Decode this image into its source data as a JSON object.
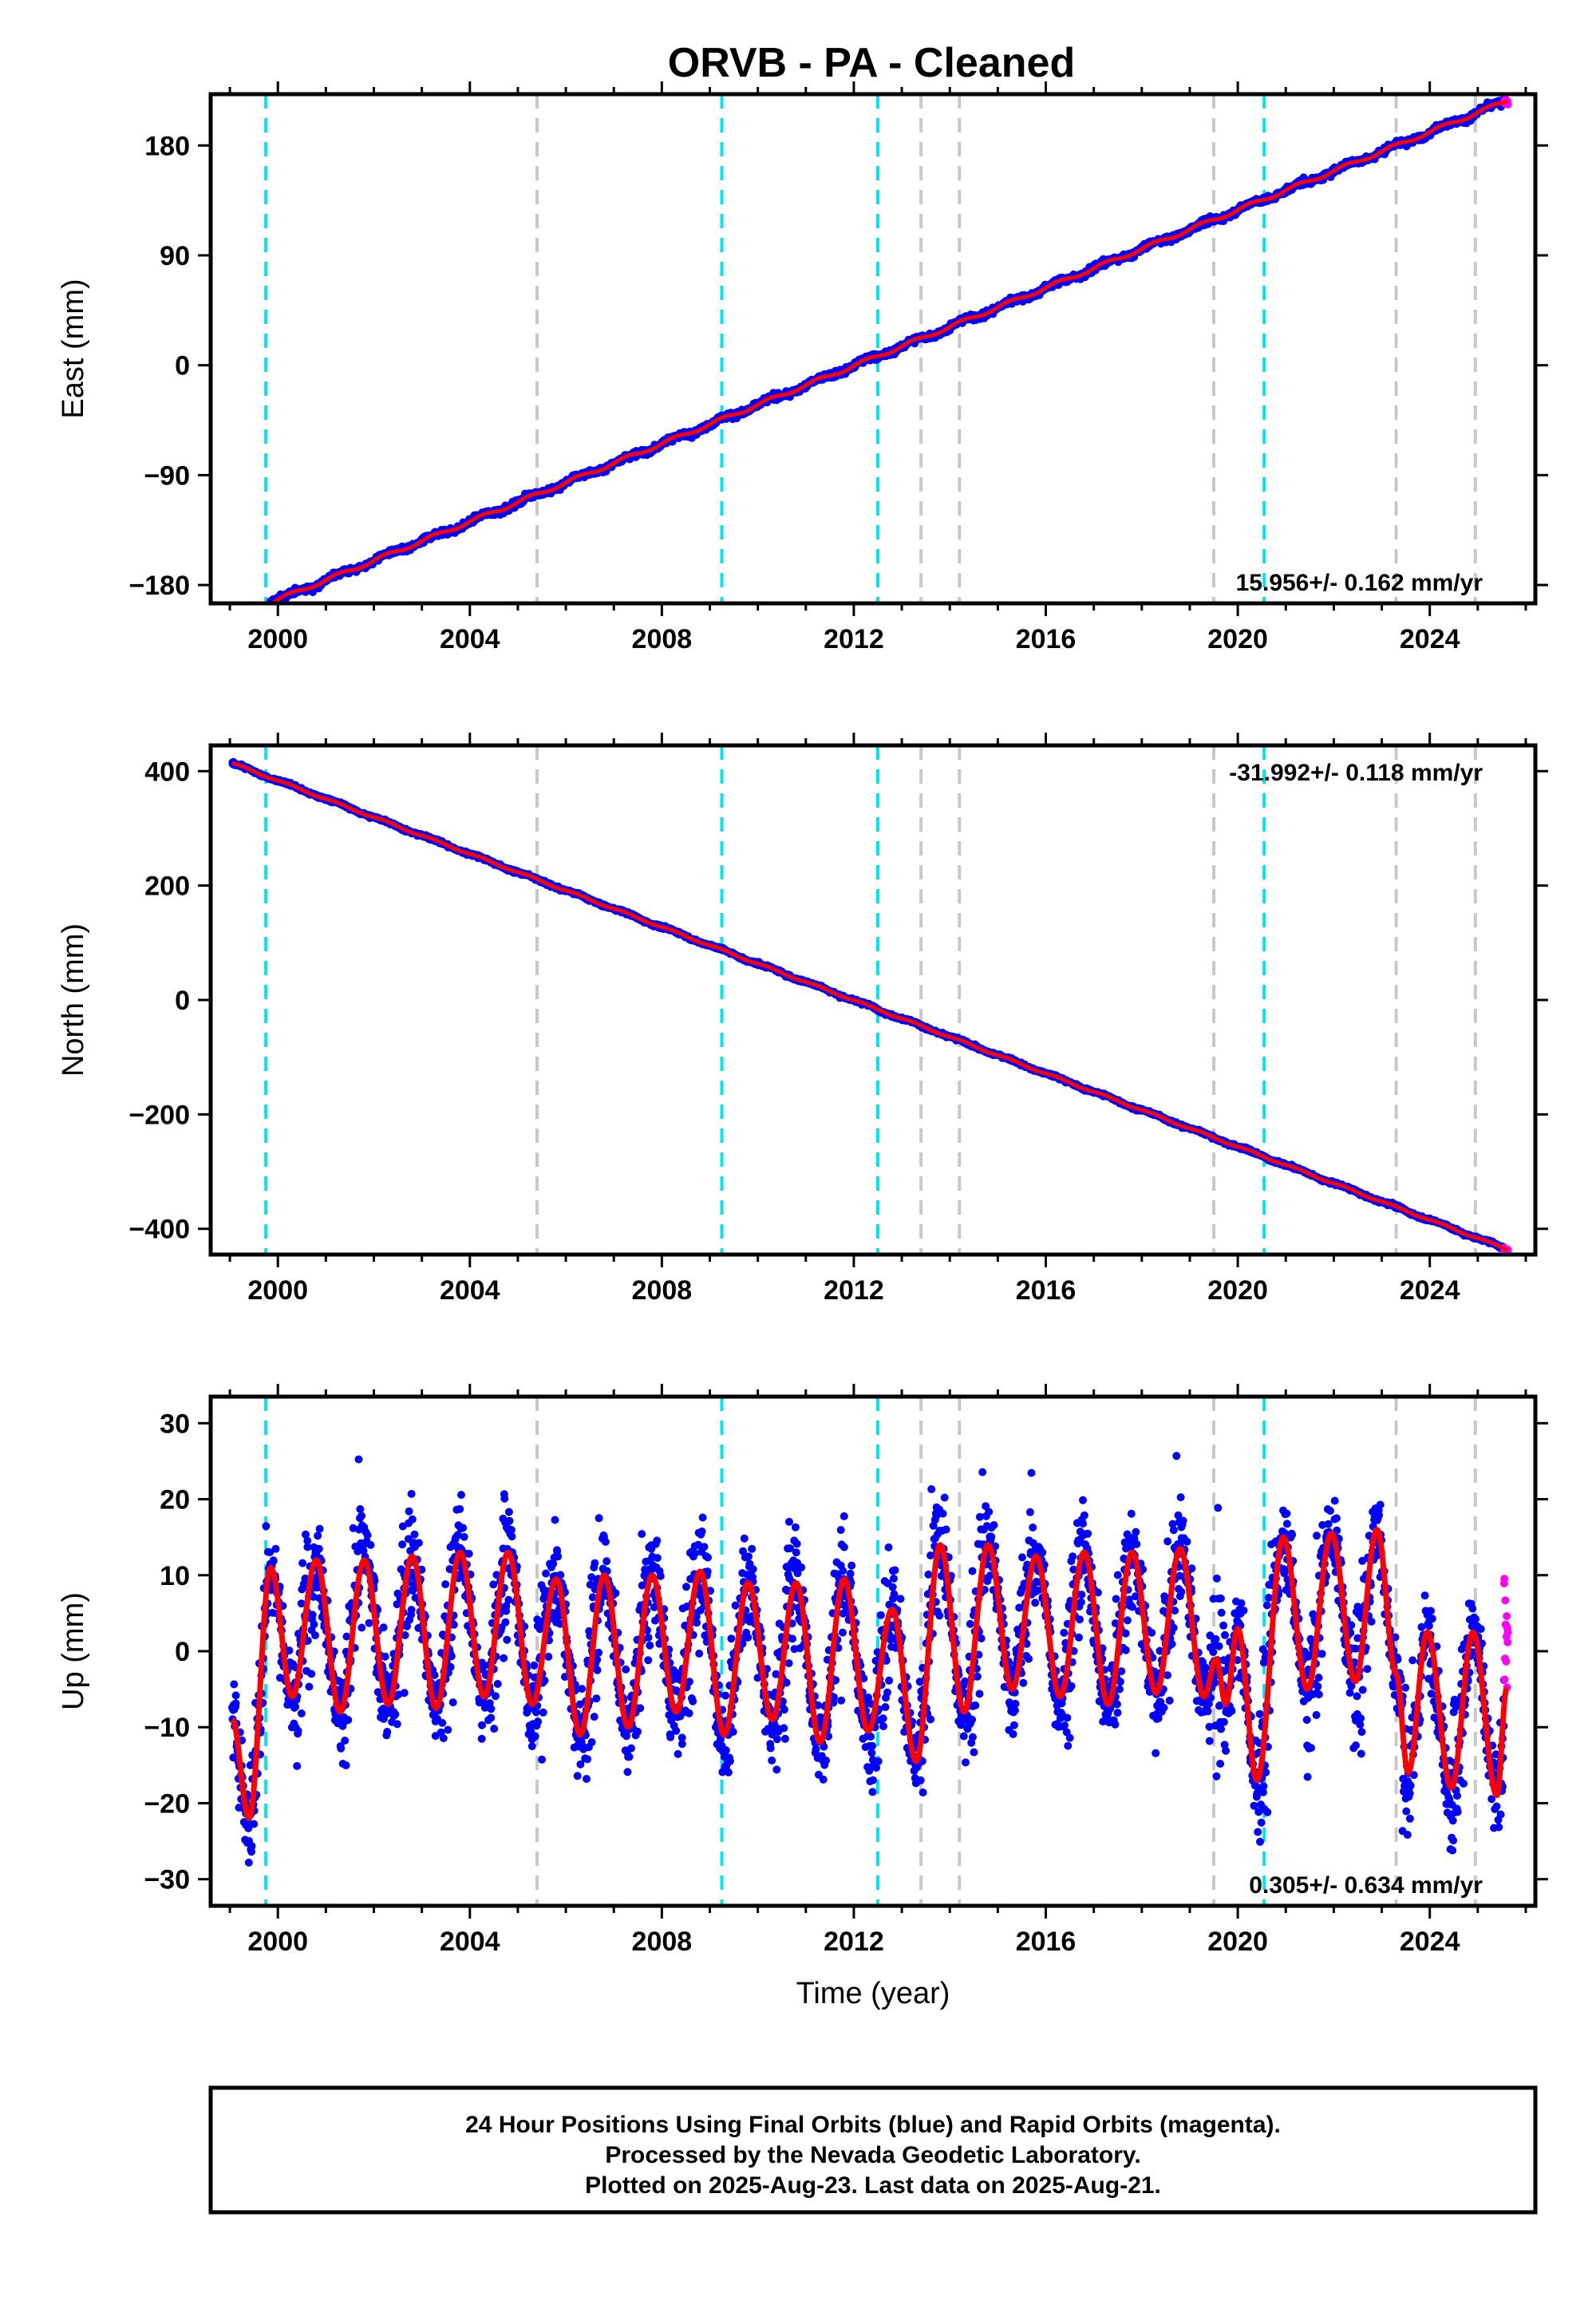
{
  "title": "ORVB  - PA - Cleaned",
  "footer": {
    "lines": [
      "24 Hour Positions Using Final Orbits (blue) and Rapid Orbits (magenta).",
      "Processed by the Nevada Geodetic Laboratory.",
      "Plotted on 2025-Aug-23. Last data on 2025-Aug-21."
    ]
  },
  "colors": {
    "final": "#0000ff",
    "rapid": "#ff00ff",
    "model": "#ff0000",
    "event_cyan": "#00e5ee",
    "event_gray": "#c8c8c8"
  },
  "chart_data": [
    {
      "type": "scatter",
      "component": "east",
      "ylabel": "East (mm)",
      "xlabel": "",
      "xlim": [
        1998.6,
        2026.2
      ],
      "ylim": [
        -195,
        222
      ],
      "yticks": [
        180,
        90,
        0,
        -90,
        -180
      ],
      "ytick_labels": [
        "180",
        "90",
        "0",
        "−90",
        "−180"
      ],
      "xticks": [
        2000,
        2004,
        2008,
        2012,
        2016,
        2020,
        2024
      ],
      "rate_label": "15.956+/- 0.162 mm/yr",
      "rate_position": "bottom-right",
      "model": {
        "t0": 2012.0,
        "offset": -0.5,
        "slope": 15.956,
        "annual_amp": 1.5
      },
      "data_span": [
        1999.05,
        2025.63
      ],
      "rapid_span": [
        2025.55,
        2025.63
      ]
    },
    {
      "type": "scatter",
      "component": "north",
      "ylabel": "North (mm)",
      "xlabel": "",
      "xlim": [
        1998.6,
        2026.2
      ],
      "ylim": [
        -445,
        445
      ],
      "yticks": [
        400,
        200,
        0,
        -200,
        -400
      ],
      "ytick_labels": [
        "400",
        "200",
        "0",
        "−200",
        "−400"
      ],
      "xticks": [
        2000,
        2004,
        2008,
        2012,
        2016,
        2020,
        2024
      ],
      "rate_label": "-31.992+/- 0.118 mm/yr",
      "rate_position": "top-right",
      "model": {
        "t0": 2012.0,
        "offset": -0.5,
        "slope": -31.992,
        "annual_amp": 1.5
      },
      "data_span": [
        1999.05,
        2025.63
      ],
      "rapid_span": [
        2025.55,
        2025.63
      ]
    },
    {
      "type": "scatter",
      "component": "up",
      "ylabel": "Up (mm)",
      "xlabel": "Time (year)",
      "xlim": [
        1998.6,
        2026.2
      ],
      "ylim": [
        -33.5,
        33.5
      ],
      "yticks": [
        30,
        20,
        10,
        0,
        -10,
        -20,
        -30
      ],
      "ytick_labels": [
        "30",
        "20",
        "10",
        "0",
        "−10",
        "−20",
        "−30"
      ],
      "xticks": [
        2000,
        2004,
        2008,
        2012,
        2016,
        2020,
        2024
      ],
      "rate_label": "0.305+/- 0.634 mm/yr",
      "rate_position": "bottom-right",
      "seasonal_model": [
        {
          "t": 1999.05,
          "v": -9
        },
        {
          "t": 1999.4,
          "v": -22
        },
        {
          "t": 1999.85,
          "v": 11
        },
        {
          "t": 2000.3,
          "v": -6
        },
        {
          "t": 2000.8,
          "v": 12
        },
        {
          "t": 2001.3,
          "v": -8
        },
        {
          "t": 2001.8,
          "v": 12
        },
        {
          "t": 2002.3,
          "v": -7
        },
        {
          "t": 2002.8,
          "v": 12.5
        },
        {
          "t": 2003.3,
          "v": -7.5
        },
        {
          "t": 2003.8,
          "v": 13
        },
        {
          "t": 2004.3,
          "v": -6
        },
        {
          "t": 2004.8,
          "v": 13
        },
        {
          "t": 2005.3,
          "v": -7
        },
        {
          "t": 2005.8,
          "v": 9.5
        },
        {
          "t": 2006.3,
          "v": -11
        },
        {
          "t": 2006.8,
          "v": 10
        },
        {
          "t": 2007.3,
          "v": -10
        },
        {
          "t": 2007.8,
          "v": 10
        },
        {
          "t": 2008.3,
          "v": -8
        },
        {
          "t": 2008.8,
          "v": 10.5
        },
        {
          "t": 2009.3,
          "v": -11
        },
        {
          "t": 2009.8,
          "v": 9
        },
        {
          "t": 2010.3,
          "v": -9
        },
        {
          "t": 2010.8,
          "v": 9
        },
        {
          "t": 2011.3,
          "v": -12
        },
        {
          "t": 2011.8,
          "v": 9.5
        },
        {
          "t": 2012.3,
          "v": -10.5
        },
        {
          "t": 2012.8,
          "v": 5.5
        },
        {
          "t": 2013.3,
          "v": -14.5
        },
        {
          "t": 2013.8,
          "v": 14
        },
        {
          "t": 2014.3,
          "v": -8
        },
        {
          "t": 2014.8,
          "v": 14
        },
        {
          "t": 2015.3,
          "v": -5
        },
        {
          "t": 2015.8,
          "v": 12.5
        },
        {
          "t": 2016.3,
          "v": -6
        },
        {
          "t": 2016.8,
          "v": 13
        },
        {
          "t": 2017.3,
          "v": -7
        },
        {
          "t": 2017.8,
          "v": 13
        },
        {
          "t": 2018.3,
          "v": -5.5
        },
        {
          "t": 2018.8,
          "v": 13.5
        },
        {
          "t": 2019.3,
          "v": -6
        },
        {
          "t": 2019.55,
          "v": -1
        },
        {
          "t": 2019.75,
          "v": -7
        },
        {
          "t": 2020.0,
          "v": 3
        },
        {
          "t": 2020.4,
          "v": -17
        },
        {
          "t": 2020.95,
          "v": 15
        },
        {
          "t": 2021.45,
          "v": -5
        },
        {
          "t": 2021.95,
          "v": 15.5
        },
        {
          "t": 2022.45,
          "v": -4
        },
        {
          "t": 2022.9,
          "v": 16
        },
        {
          "t": 2023.3,
          "v": -3
        },
        {
          "t": 2023.55,
          "v": -16
        },
        {
          "t": 2023.95,
          "v": 2.5
        },
        {
          "t": 2024.45,
          "v": -18
        },
        {
          "t": 2024.9,
          "v": 2.5
        },
        {
          "t": 2025.4,
          "v": -19
        },
        {
          "t": 2025.6,
          "v": -5
        }
      ],
      "scatter_noise": {
        "sigma": 4.5,
        "annual_boost": 1.25
      },
      "data_span": [
        1999.05,
        2025.63
      ],
      "rapid_span": [
        2025.55,
        2025.63
      ],
      "rapid_range": [
        -5,
        10
      ]
    }
  ],
  "event_lines": {
    "cyan": [
      1999.75,
      2009.25,
      2012.5,
      2020.55
    ],
    "gray": [
      2005.4,
      2013.4,
      2014.2,
      2019.5,
      2023.3,
      2024.95
    ]
  }
}
